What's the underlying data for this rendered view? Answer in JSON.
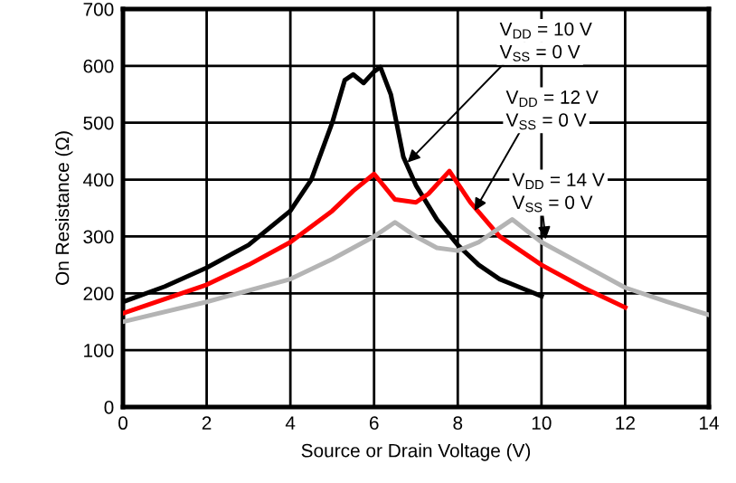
{
  "chart_data": {
    "type": "line",
    "xlabel": "Source or Drain Voltage (V)",
    "ylabel": "On Resistance (Ω)",
    "xlim": [
      0,
      14
    ],
    "xticks": [
      0,
      2,
      4,
      6,
      8,
      10,
      12,
      14
    ],
    "ylim": [
      0,
      700
    ],
    "yticks": [
      0,
      100,
      200,
      300,
      400,
      500,
      600,
      700
    ],
    "grid": true,
    "legend": false,
    "marker": "none",
    "line_style": "solid",
    "series": [
      {
        "color": "#000000",
        "x": [
          0,
          1,
          2,
          3,
          4,
          4.5,
          5,
          5.3,
          5.5,
          5.75,
          6,
          6.15,
          6.4,
          6.7,
          7,
          7.5,
          8,
          8.5,
          9,
          9.5,
          10
        ],
        "values": [
          185,
          212,
          245,
          285,
          345,
          400,
          500,
          575,
          585,
          570,
          590,
          598,
          550,
          440,
          390,
          330,
          285,
          250,
          225,
          210,
          195
        ]
      },
      {
        "color": "#ff0000",
        "x": [
          0,
          1,
          2,
          3,
          4,
          5,
          5.5,
          6,
          6.5,
          7,
          7.3,
          7.8,
          8.3,
          9,
          10,
          11,
          12
        ],
        "values": [
          165,
          190,
          215,
          250,
          290,
          345,
          380,
          410,
          365,
          360,
          375,
          415,
          360,
          300,
          250,
          210,
          175
        ]
      },
      {
        "color": "#b4b4b4",
        "x": [
          0,
          2,
          4,
          5,
          6,
          6.5,
          7,
          7.5,
          8,
          8.5,
          9.3,
          10,
          11,
          12,
          13,
          14
        ],
        "values": [
          150,
          185,
          225,
          260,
          300,
          325,
          300,
          280,
          275,
          290,
          330,
          290,
          250,
          210,
          185,
          162
        ]
      }
    ],
    "annotations": [
      {
        "text": "V$_{DD}$ = 10 V",
        "x": 6.8,
        "y": 430
      },
      "V$_{SS}$ = 0 V",
      {
        "text": "V$_{DD}$ = 12 V",
        "x": 8.4,
        "y": 345
      },
      "V$_{SS}$ = 0 V",
      {
        "text": "V$_{DD}$ = 14 V",
        "x": 10.1,
        "y": 295
      },
      "V$_{SS}$ = 0 V"
    ]
  }
}
